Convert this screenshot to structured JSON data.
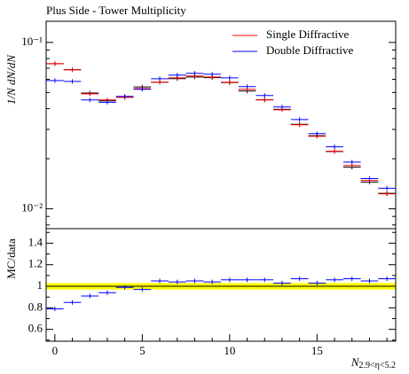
{
  "chart_data": [
    {
      "type": "points",
      "title": "Plus Side - Tower Multiplicity",
      "ylabel": "1/N dN/dN",
      "x": [
        0,
        1,
        2,
        3,
        4,
        5,
        6,
        7,
        8,
        9,
        10,
        11,
        12,
        13,
        14,
        15,
        16,
        17,
        18,
        19
      ],
      "reference": {
        "color": "#000000",
        "values": [
          0.0745,
          0.0686,
          0.0496,
          0.0446,
          0.0468,
          0.054,
          0.0577,
          0.0606,
          0.062,
          0.0614,
          0.0574,
          0.0511,
          0.0452,
          0.0396,
          0.0322,
          0.0275,
          0.0221,
          0.0178,
          0.0145,
          0.0124
        ]
      },
      "series": [
        {
          "name": "Single Diffractive",
          "color": "#ff0000",
          "values": [
            0.0745,
            0.0684,
            0.0491,
            0.0451,
            0.0468,
            0.0528,
            0.0577,
            0.0612,
            0.0628,
            0.062,
            0.0577,
            0.0523,
            0.0451,
            0.0394,
            0.032,
            0.0273,
            0.0222,
            0.0182,
            0.0148,
            0.0123
          ]
        },
        {
          "name": "Double Diffractive",
          "color": "#0000ff",
          "values": [
            0.059,
            0.0583,
            0.0451,
            0.0437,
            0.0474,
            0.0523,
            0.0605,
            0.0636,
            0.0652,
            0.0644,
            0.0612,
            0.0542,
            0.048,
            0.0409,
            0.0344,
            0.0283,
            0.0236,
            0.0191,
            0.0152,
            0.0133
          ]
        }
      ],
      "xlim": [
        -0.5,
        19.5
      ],
      "ylim": [
        0.0076,
        0.134
      ],
      "log_y": true,
      "yticks": [
        {
          "value": 0.1,
          "label": "10⁻¹"
        },
        {
          "value": 0.01,
          "label": "10⁻²"
        }
      ],
      "yminorticks": [
        0.008,
        0.009,
        0.02,
        0.03,
        0.04,
        0.05,
        0.06,
        0.07,
        0.08,
        0.09
      ],
      "legend": "upper right"
    },
    {
      "type": "ratio",
      "ylabel": "MC/data",
      "xlabel": "N",
      "xlabel_sub": "2.9<η<5.2",
      "x": [
        0,
        1,
        2,
        3,
        4,
        5,
        6,
        7,
        8,
        9,
        10,
        11,
        12,
        13,
        14,
        15,
        16,
        17,
        18,
        19
      ],
      "band": {
        "color": "#ffff00",
        "values": [
          0.97,
          1.03
        ]
      },
      "series": [
        {
          "color": "#0000ff",
          "values": [
            0.79,
            0.85,
            0.91,
            0.94,
            0.99,
            0.97,
            1.05,
            1.04,
            1.05,
            1.04,
            1.06,
            1.06,
            1.06,
            1.03,
            1.07,
            1.03,
            1.06,
            1.07,
            1.05,
            1.07
          ]
        }
      ],
      "xlim": [
        -0.5,
        19.5
      ],
      "ylim": [
        0.49,
        1.535
      ],
      "xticks": [
        0,
        5,
        10,
        15
      ],
      "xminorticks": [
        1,
        2,
        3,
        4,
        6,
        7,
        8,
        9,
        11,
        12,
        13,
        14,
        16,
        17,
        18,
        19
      ],
      "yticks": [
        0.6,
        0.8,
        1,
        1.2,
        1.4
      ],
      "yminorticks": [
        0.5,
        0.7,
        0.9,
        1.1,
        1.3,
        1.5
      ]
    }
  ]
}
